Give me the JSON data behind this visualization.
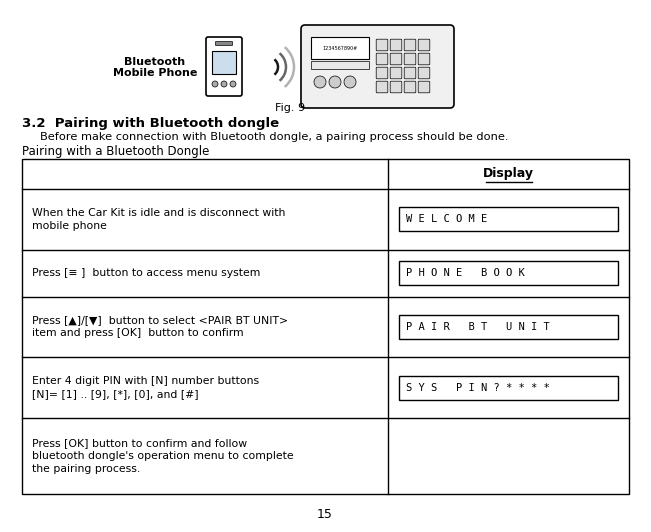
{
  "title_bt": "Bluetooth",
  "title_mp": "Mobile Phone",
  "fig_label": "Fig. 9",
  "section_num": "3.2",
  "section_title": "Pairing with Bluetooth dongle",
  "section_desc": "Before make connection with Bluetooth dongle, a pairing process should be done.",
  "table_title": "Pairing with a Bluetooth Dongle",
  "col_header": "Display",
  "rows": [
    {
      "left": "When the Car Kit is idle and is disconnect with\nmobile phone",
      "right": "W E L C O M E"
    },
    {
      "left": "Press [≡ ]  button to access menu system",
      "right": "P H O N E   B O O K"
    },
    {
      "left": "Press [▲]/[▼]  button to select <PAIR BT UNIT>\nitem and press [OK]  button to confirm",
      "right": "P A I R   B T   U N I T"
    },
    {
      "left": "Enter 4 digit PIN with [N] number buttons\n[N]= [1] .. [9], [*], [0], and [#]",
      "right": "S Y S   P I N ? * * * *"
    },
    {
      "left": "Press [OK] button to confirm and follow\nbluetooth dongle's operation menu to complete\nthe pairing process.",
      "right": ""
    }
  ],
  "page_number": "15",
  "bg_color": "#ffffff",
  "text_color": "#000000",
  "table_line_color": "#000000"
}
